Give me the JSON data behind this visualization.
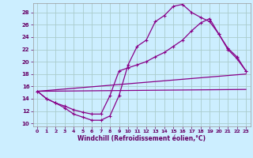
{
  "xlabel": "Windchill (Refroidissement éolien,°C)",
  "bg_color": "#cceeff",
  "line_color": "#880088",
  "grid_color": "#aacccc",
  "xlim": [
    -0.5,
    23.5
  ],
  "ylim": [
    9.5,
    29.5
  ],
  "xticks": [
    0,
    1,
    2,
    3,
    4,
    5,
    6,
    7,
    8,
    9,
    10,
    11,
    12,
    13,
    14,
    15,
    16,
    17,
    18,
    19,
    20,
    21,
    22,
    23
  ],
  "yticks": [
    10,
    12,
    14,
    16,
    18,
    20,
    22,
    24,
    26,
    28
  ],
  "lines": [
    {
      "x": [
        0,
        1,
        2,
        3,
        4,
        5,
        6,
        7,
        8,
        9,
        10,
        11,
        12,
        13,
        14,
        15,
        16,
        17,
        18,
        19,
        20,
        21,
        22,
        23
      ],
      "y": [
        15.2,
        14.0,
        13.3,
        12.5,
        11.5,
        11.0,
        10.5,
        10.5,
        11.2,
        14.5,
        19.5,
        22.5,
        23.5,
        26.5,
        27.5,
        29.0,
        29.3,
        28.0,
        27.2,
        26.5,
        24.5,
        22.0,
        20.5,
        18.5
      ],
      "marker": true
    },
    {
      "x": [
        0,
        1,
        2,
        3,
        4,
        5,
        6,
        7,
        8,
        9,
        10,
        11,
        12,
        13,
        14,
        15,
        16,
        17,
        18,
        19,
        20,
        21,
        22,
        23
      ],
      "y": [
        15.2,
        14.0,
        13.3,
        12.8,
        12.2,
        11.8,
        11.5,
        11.5,
        14.5,
        18.5,
        19.0,
        19.5,
        20.0,
        20.8,
        21.5,
        22.5,
        23.5,
        25.0,
        26.3,
        27.0,
        24.5,
        22.2,
        20.8,
        18.5
      ],
      "marker": true
    },
    {
      "x": [
        0,
        23
      ],
      "y": [
        15.2,
        18.0
      ],
      "marker": false
    },
    {
      "x": [
        0,
        23
      ],
      "y": [
        15.2,
        15.5
      ],
      "marker": false
    }
  ]
}
